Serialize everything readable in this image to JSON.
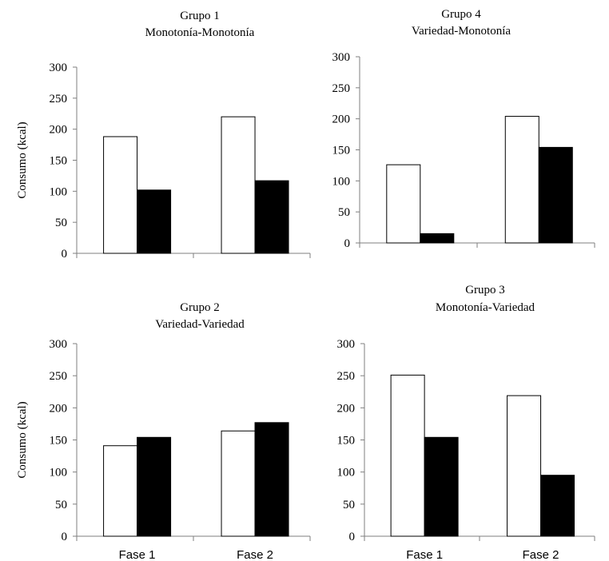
{
  "chart_data": [
    {
      "type": "bar",
      "title": "Grupo 1",
      "subtitle": "Monotonía-Monotonía",
      "ylabel": "Consumo (kcal)",
      "categories": [
        "",
        ""
      ],
      "series": [
        {
          "color": "#ffffff",
          "values": [
            188,
            220
          ]
        },
        {
          "color": "#000000",
          "values": [
            102,
            117
          ]
        }
      ],
      "ylim": [
        0,
        300
      ],
      "yticks": [
        0,
        50,
        100,
        150,
        200,
        250,
        300
      ],
      "grid": false
    },
    {
      "type": "bar",
      "title": "Grupo 4",
      "subtitle": "Variedad-Monotonía",
      "ylabel": "",
      "categories": [
        "",
        ""
      ],
      "series": [
        {
          "color": "#ffffff",
          "values": [
            126,
            204
          ]
        },
        {
          "color": "#000000",
          "values": [
            15,
            154
          ]
        }
      ],
      "ylim": [
        0,
        300
      ],
      "yticks": [
        0,
        50,
        100,
        150,
        200,
        250,
        300
      ],
      "grid": false
    },
    {
      "type": "bar",
      "title": "Grupo 2",
      "subtitle": "Variedad-Variedad",
      "ylabel": "Consumo (kcal)",
      "categories": [
        "Fase 1",
        "Fase 2"
      ],
      "series": [
        {
          "color": "#ffffff",
          "values": [
            141,
            164
          ]
        },
        {
          "color": "#000000",
          "values": [
            154,
            177
          ]
        }
      ],
      "ylim": [
        0,
        300
      ],
      "yticks": [
        0,
        50,
        100,
        150,
        200,
        250,
        300
      ],
      "grid": false
    },
    {
      "type": "bar",
      "title": "Grupo 3",
      "subtitle": "Monotonía-Variedad",
      "ylabel": "",
      "categories": [
        "Fase 1",
        "Fase 2"
      ],
      "series": [
        {
          "color": "#ffffff",
          "values": [
            251,
            219
          ]
        },
        {
          "color": "#000000",
          "values": [
            154,
            95
          ]
        }
      ],
      "ylim": [
        0,
        300
      ],
      "yticks": [
        0,
        50,
        100,
        150,
        200,
        250,
        300
      ],
      "grid": false
    }
  ]
}
